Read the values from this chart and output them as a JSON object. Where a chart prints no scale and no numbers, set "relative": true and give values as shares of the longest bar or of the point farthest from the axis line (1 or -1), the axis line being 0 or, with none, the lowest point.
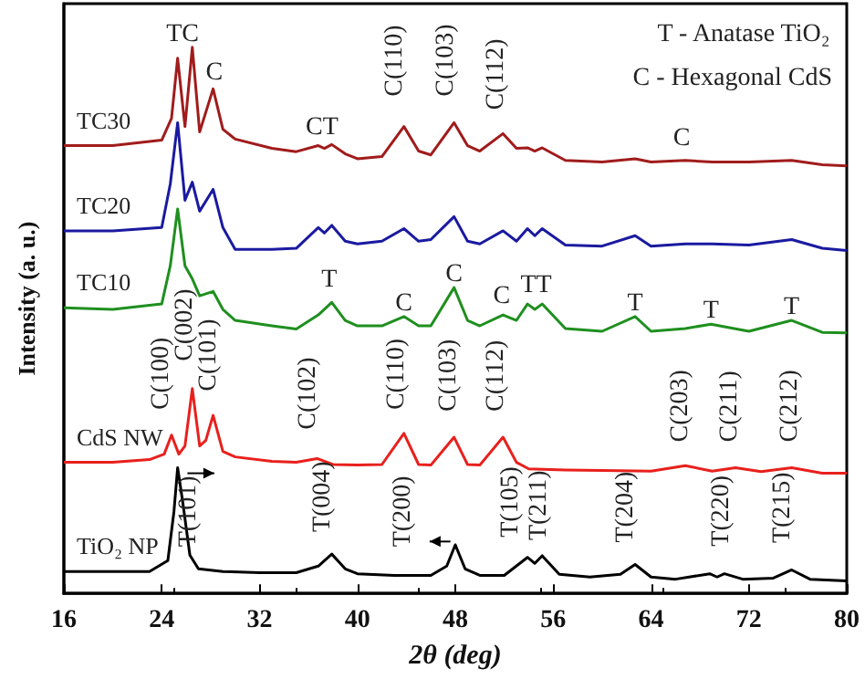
{
  "chart_data": {
    "type": "line",
    "relative": true,
    "xlabel": "2θ (deg)",
    "ylabel": "Intensity (a. u.)",
    "xlim": [
      16,
      80
    ],
    "xticks": [
      16,
      24,
      32,
      40,
      48,
      56,
      64,
      72,
      80
    ],
    "grid": false,
    "legend": false,
    "marker": "none",
    "line_style": "solid",
    "series": [
      {
        "name": "TC30",
        "color": "#a01c1c",
        "x": [
          16,
          20,
          24,
          24.8,
          25.3,
          25.9,
          26.5,
          27.1,
          28.2,
          29,
          30,
          33,
          35,
          36.8,
          37.3,
          37.9,
          39,
          40,
          42,
          43.8,
          45,
          46,
          47.9,
          49,
          50,
          51.9,
          53,
          53.9,
          54.5,
          55.1,
          57,
          60,
          62.7,
          64,
          66.8,
          69,
          72,
          75.5,
          78,
          80
        ],
        "values": [
          0.82,
          0.82,
          0.83,
          0.87,
          0.98,
          0.855,
          1.0,
          0.845,
          0.924,
          0.85,
          0.832,
          0.815,
          0.809,
          0.82,
          0.815,
          0.822,
          0.805,
          0.796,
          0.8,
          0.855,
          0.81,
          0.803,
          0.862,
          0.82,
          0.81,
          0.842,
          0.815,
          0.816,
          0.81,
          0.816,
          0.793,
          0.79,
          0.796,
          0.79,
          0.793,
          0.79,
          0.79,
          0.793,
          0.785,
          0.783
        ]
      },
      {
        "name": "TC20",
        "color": "#1a1aa0",
        "x": [
          16,
          20,
          24,
          24.7,
          25.3,
          25.9,
          26.5,
          27.1,
          28.2,
          29,
          30,
          33,
          35,
          36.8,
          37.3,
          37.9,
          39,
          40,
          42,
          43.8,
          45,
          46,
          47.9,
          49,
          50,
          51.9,
          53,
          53.9,
          54.5,
          55.1,
          57,
          60,
          62.7,
          64,
          66.8,
          69,
          72,
          75.5,
          78,
          80
        ],
        "values": [
          0.664,
          0.664,
          0.67,
          0.75,
          0.862,
          0.72,
          0.753,
          0.7,
          0.74,
          0.67,
          0.63,
          0.63,
          0.632,
          0.67,
          0.66,
          0.674,
          0.645,
          0.64,
          0.645,
          0.668,
          0.645,
          0.648,
          0.69,
          0.645,
          0.64,
          0.664,
          0.645,
          0.668,
          0.655,
          0.668,
          0.638,
          0.636,
          0.655,
          0.636,
          0.64,
          0.64,
          0.638,
          0.648,
          0.632,
          0.628
        ]
      },
      {
        "name": "TC10",
        "color": "#1f8f1f",
        "x": [
          16,
          20,
          24,
          24.7,
          25.3,
          25.9,
          26.5,
          27.1,
          28.2,
          29,
          30,
          33,
          35,
          36.8,
          37.9,
          39,
          40,
          42,
          43.8,
          45,
          46,
          47.9,
          49,
          50,
          51.9,
          53,
          53.9,
          54.5,
          55.1,
          57,
          60,
          62.7,
          64,
          66.8,
          68.9,
          72,
          75.5,
          78,
          80
        ],
        "values": [
          0.523,
          0.52,
          0.53,
          0.6,
          0.704,
          0.6,
          0.576,
          0.545,
          0.553,
          0.52,
          0.5,
          0.49,
          0.484,
          0.51,
          0.533,
          0.5,
          0.49,
          0.49,
          0.507,
          0.49,
          0.49,
          0.56,
          0.5,
          0.49,
          0.51,
          0.5,
          0.53,
          0.52,
          0.53,
          0.485,
          0.48,
          0.507,
          0.48,
          0.485,
          0.493,
          0.48,
          0.5,
          0.478,
          0.477
        ]
      },
      {
        "name": "CdS NW",
        "color": "#e8201c",
        "x": [
          16,
          20,
          23,
          24.2,
          24.8,
          25.4,
          25.9,
          26.5,
          27.1,
          27.6,
          28.2,
          29,
          30,
          33,
          35,
          36.7,
          38,
          40,
          42,
          43.8,
          45,
          46,
          47.9,
          49,
          50,
          51.9,
          53,
          54,
          57,
          60,
          64,
          66.8,
          69,
          70.9,
          73,
          75.5,
          78,
          80
        ],
        "values": [
          0.24,
          0.24,
          0.245,
          0.255,
          0.29,
          0.255,
          0.27,
          0.375,
          0.27,
          0.28,
          0.326,
          0.26,
          0.25,
          0.242,
          0.24,
          0.247,
          0.236,
          0.235,
          0.236,
          0.293,
          0.236,
          0.235,
          0.286,
          0.236,
          0.235,
          0.286,
          0.24,
          0.228,
          0.226,
          0.225,
          0.224,
          0.234,
          0.224,
          0.23,
          0.223,
          0.23,
          0.22,
          0.22
        ]
      },
      {
        "name": "TiO₂ NP",
        "color": "#000000",
        "x": [
          16,
          20,
          23,
          24.5,
          25,
          25.3,
          25.7,
          26.3,
          27,
          29,
          32,
          35,
          36.8,
          37.9,
          39,
          40,
          43,
          46,
          47.3,
          48,
          48.8,
          50,
          52,
          53.9,
          54.5,
          55.1,
          56.5,
          59,
          61.5,
          62.7,
          64,
          66,
          68.8,
          69.4,
          70,
          71.5,
          74,
          75.5,
          77,
          80
        ],
        "values": [
          0.04,
          0.04,
          0.04,
          0.06,
          0.15,
          0.23,
          0.17,
          0.07,
          0.045,
          0.04,
          0.038,
          0.038,
          0.05,
          0.072,
          0.045,
          0.036,
          0.033,
          0.033,
          0.05,
          0.089,
          0.045,
          0.033,
          0.033,
          0.066,
          0.055,
          0.069,
          0.035,
          0.03,
          0.035,
          0.053,
          0.03,
          0.026,
          0.036,
          0.03,
          0.036,
          0.026,
          0.028,
          0.043,
          0.026,
          0.023
        ]
      }
    ],
    "annotations": [
      "T - Anatase TiO₂",
      "C - Hexagonal CdS",
      {
        "text": "TC",
        "x": 25.7,
        "y": 1.0
      },
      {
        "text": "C",
        "x": 28.3,
        "y": 0.93
      },
      {
        "text": "CT",
        "x": 37.1,
        "y": 0.83
      },
      {
        "text": "C(110)",
        "x": 43.8,
        "y": 0.87
      },
      {
        "text": "C(103)",
        "x": 48,
        "y": 0.87
      },
      {
        "text": "C(112)",
        "x": 52.1,
        "y": 0.845
      },
      {
        "text": "C",
        "x": 66.5,
        "y": 0.81
      },
      {
        "text": "T",
        "x": 37.7,
        "y": 0.55
      },
      {
        "text": "C",
        "x": 43.8,
        "y": 0.507
      },
      {
        "text": "C",
        "x": 47.9,
        "y": 0.56
      },
      {
        "text": "C",
        "x": 51.8,
        "y": 0.52
      },
      {
        "text": "TT",
        "x": 54.6,
        "y": 0.54
      },
      {
        "text": "T",
        "x": 62.7,
        "y": 0.507
      },
      {
        "text": "T",
        "x": 68.9,
        "y": 0.493
      },
      {
        "text": "T",
        "x": 75.5,
        "y": 0.5
      },
      {
        "text": "C(100)",
        "x": 24.7,
        "y": 0.296
      },
      {
        "text": "C(002)",
        "x": 26.7,
        "y": 0.385
      },
      {
        "text": "C(101)",
        "x": 28.6,
        "y": 0.33
      },
      {
        "text": "C(102)",
        "x": 36.7,
        "y": 0.26
      },
      {
        "text": "C(110)",
        "x": 44,
        "y": 0.296
      },
      {
        "text": "C(103)",
        "x": 48.2,
        "y": 0.293
      },
      {
        "text": "C(112)",
        "x": 52.1,
        "y": 0.293
      },
      {
        "text": "C(203)",
        "x": 67.2,
        "y": 0.237
      },
      {
        "text": "C(211)",
        "x": 71.2,
        "y": 0.237
      },
      {
        "text": "C(212)",
        "x": 76.1,
        "y": 0.237
      },
      {
        "text": "T(101)",
        "x": 27,
        "y": 0.045
      },
      {
        "text": "T(004)",
        "x": 37.9,
        "y": 0.072
      },
      {
        "text": "T(200)",
        "x": 44.5,
        "y": 0.045
      },
      {
        "text": "T(105)",
        "x": 53.3,
        "y": 0.0625
      },
      {
        "text": "T(211)",
        "x": 55.6,
        "y": 0.057
      },
      {
        "text": "T(204)",
        "x": 62.7,
        "y": 0.053
      },
      {
        "text": "T(220)",
        "x": 70.5,
        "y": 0.046
      },
      {
        "text": "T(215)",
        "x": 75.5,
        "y": 0.052
      }
    ]
  }
}
